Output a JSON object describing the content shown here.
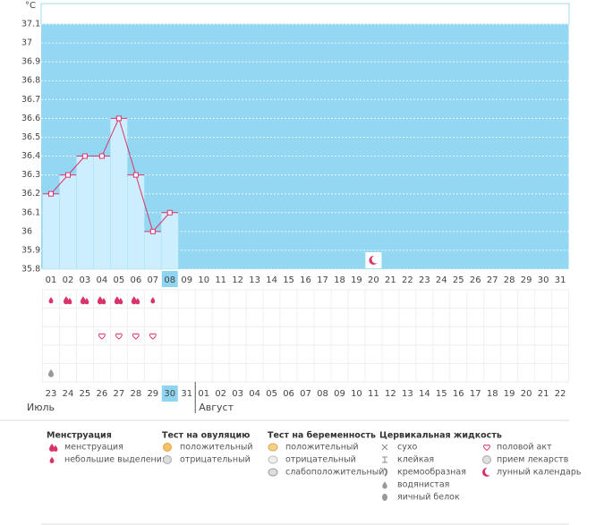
{
  "chart_data": {
    "type": "line",
    "ylabel": "°C",
    "categories": [
      "01",
      "02",
      "03",
      "04",
      "05",
      "06",
      "07",
      "08",
      "09",
      "10",
      "11",
      "12",
      "13",
      "14",
      "15",
      "16",
      "17",
      "18",
      "19",
      "20",
      "21",
      "22",
      "23",
      "24",
      "25",
      "26",
      "27",
      "28",
      "29",
      "30",
      "31"
    ],
    "values": [
      36.2,
      36.3,
      36.4,
      36.4,
      36.6,
      36.3,
      36.0,
      36.1,
      null,
      null,
      null,
      null,
      null,
      null,
      null,
      null,
      null,
      null,
      null,
      null,
      null,
      null,
      null,
      null,
      null,
      null,
      null,
      null,
      null,
      null,
      null
    ],
    "ylim": [
      35.8,
      37.1
    ],
    "yticks": [
      35.8,
      35.9,
      36,
      36.1,
      36.2,
      36.3,
      36.4,
      36.5,
      36.6,
      36.7,
      36.8,
      36.9,
      37,
      37.1
    ],
    "grid": true,
    "color": "#d9336a",
    "plot_color": "#93d7f3",
    "bar_color": "#cdeefc",
    "highlight_index": 7,
    "dates": [
      "23",
      "24",
      "25",
      "26",
      "27",
      "28",
      "29",
      "30",
      "31",
      "01",
      "02",
      "03",
      "04",
      "05",
      "06",
      "07",
      "08",
      "09",
      "10",
      "11",
      "12",
      "13",
      "14",
      "15",
      "16",
      "17",
      "18",
      "19",
      "20",
      "21",
      "22"
    ],
    "date_colors": [
      "#444",
      "#444",
      "#444",
      "#444",
      "#d9336a",
      "#d9336a",
      "#444",
      "#444",
      "#444",
      "#444",
      "#444",
      "#d9336a",
      "#d9336a",
      "#444",
      "#444",
      "#444",
      "#444",
      "#444",
      "#d9336a",
      "#d9336a",
      "#444",
      "#444",
      "#444",
      "#444",
      "#d9336a",
      "#d9336a",
      "#444",
      "#444",
      "#444",
      "#444",
      "#444"
    ],
    "months": [
      "Июль",
      "Август"
    ]
  },
  "legend": [
    {
      "title": "Менструация",
      "items": [
        "менструация",
        "небольшие выделения"
      ]
    },
    {
      "title": "Тест на овуляцию",
      "items": [
        "положительный",
        "отрицательный"
      ]
    },
    {
      "title": "Тест на беременность",
      "items": [
        "положительный",
        "отрицательный",
        "слабоположительный"
      ]
    },
    {
      "title": "Цервикальная жидкость",
      "items": [
        "сухо",
        "клейкая",
        "кремообразная",
        "водянистая",
        "яичный белок"
      ]
    },
    {
      "title": null,
      "items": [
        "половой акт",
        "прием лекарств",
        "лунный календарь"
      ]
    }
  ]
}
